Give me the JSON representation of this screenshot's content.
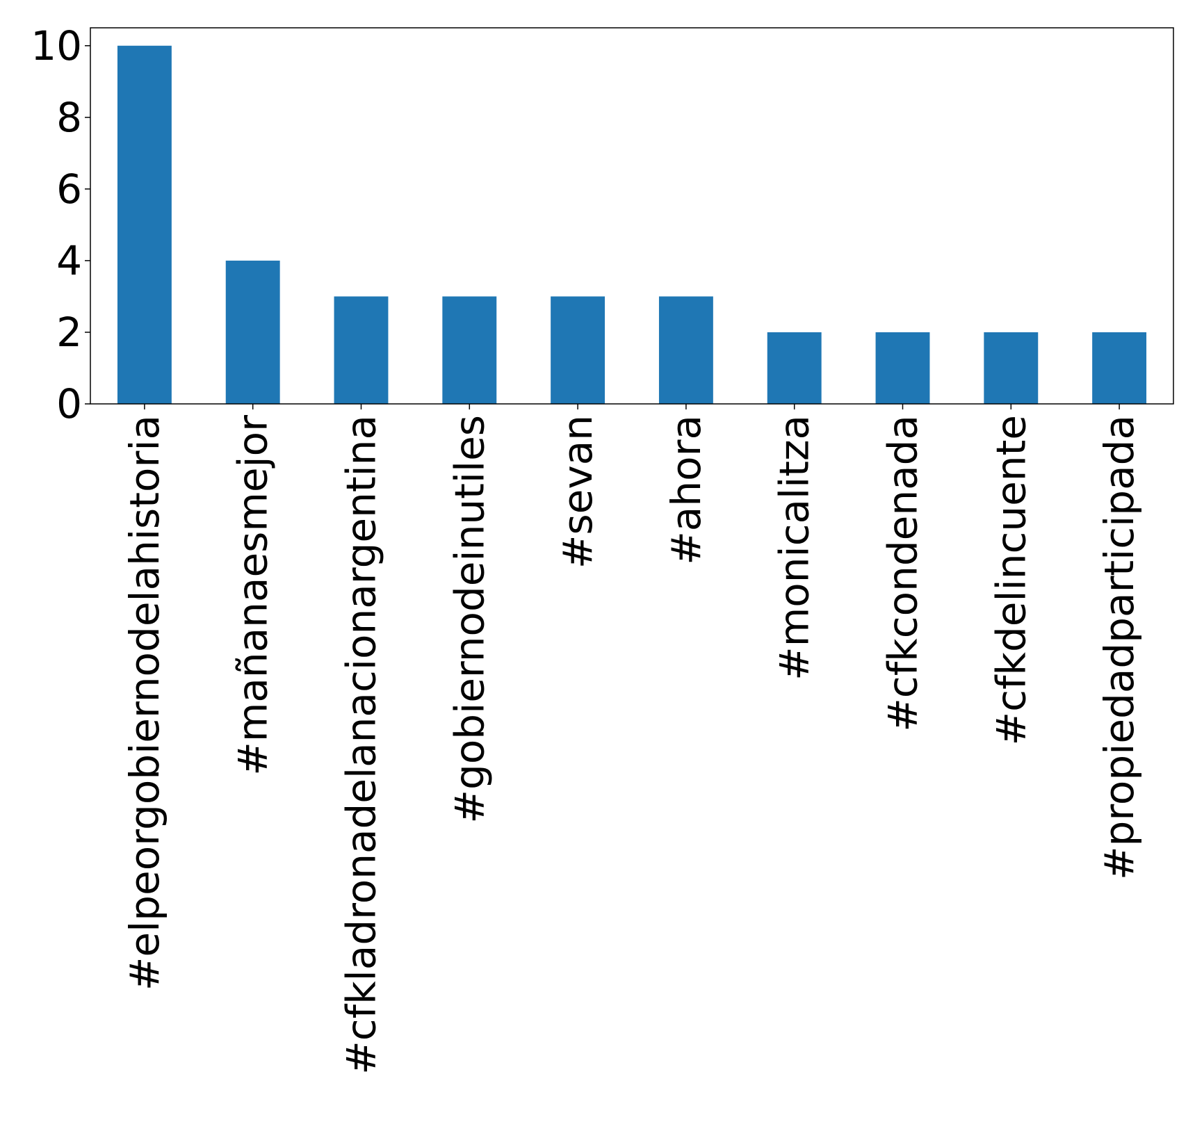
{
  "chart_data": {
    "type": "bar",
    "categories": [
      "#elpeorgobiernodelahistoria",
      "#mañanaesmejor",
      "#cfkladronadelanacionargentina",
      "#gobiernodeinutiles",
      "#sevan",
      "#ahora",
      "#monicalitza",
      "#cfkcondenada",
      "#cfkdelincuente",
      "#propiedadparticipada"
    ],
    "values": [
      10,
      4,
      3,
      3,
      3,
      3,
      2,
      2,
      2,
      2
    ],
    "title": "",
    "xlabel": "",
    "ylabel": "",
    "ylim": [
      0,
      10.5
    ],
    "yticks": [
      0,
      2,
      4,
      6,
      8,
      10
    ],
    "bar_color": "#1f77b4",
    "grid": false,
    "legend": "none"
  }
}
